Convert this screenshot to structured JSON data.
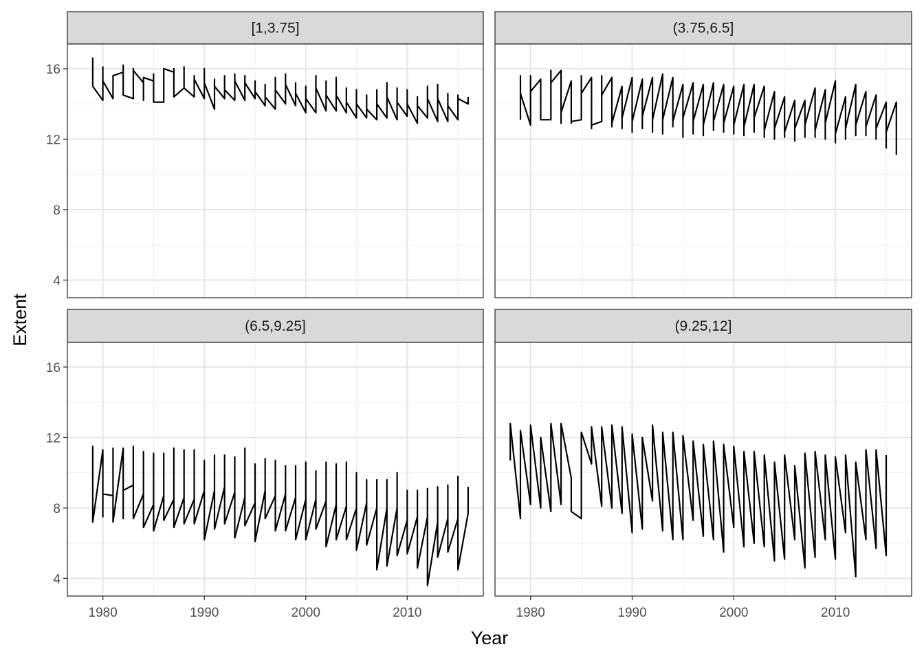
{
  "chart_data": {
    "type": "line",
    "xlabel": "Year",
    "ylabel": "Extent",
    "xlim": [
      1976.5,
      2017.5
    ],
    "ylim": [
      3.0,
      17.4
    ],
    "x_ticks": [
      1980,
      1990,
      2000,
      2010
    ],
    "x_tick_labels": [
      "1980",
      "1990",
      "2000",
      "2010"
    ],
    "y_ticks": [
      4,
      8,
      12,
      16
    ],
    "y_tick_labels": [
      "4",
      "8",
      "12",
      "16"
    ],
    "grid": true,
    "facets": [
      {
        "label": "[1,3.75]",
        "x": [
          1979,
          1979,
          1979,
          1980,
          1980,
          1980,
          1981,
          1981,
          1981,
          1982,
          1982,
          1982,
          1983,
          1983,
          1983,
          1984,
          1984,
          1984,
          1985,
          1985,
          1985,
          1986,
          1986,
          1986,
          1987,
          1987,
          1987,
          1988,
          1988,
          1988,
          1989,
          1989,
          1989,
          1990,
          1990,
          1990,
          1991,
          1991,
          1991,
          1992,
          1992,
          1992,
          1993,
          1993,
          1993,
          1994,
          1994,
          1994,
          1995,
          1995,
          1995,
          1996,
          1996,
          1996,
          1997,
          1997,
          1997,
          1998,
          1998,
          1998,
          1999,
          1999,
          1999,
          2000,
          2000,
          2000,
          2001,
          2001,
          2001,
          2002,
          2002,
          2002,
          2003,
          2003,
          2003,
          2004,
          2004,
          2004,
          2005,
          2005,
          2005,
          2006,
          2006,
          2006,
          2007,
          2007,
          2007,
          2008,
          2008,
          2008,
          2009,
          2009,
          2009,
          2010,
          2010,
          2010,
          2011,
          2011,
          2011,
          2012,
          2012,
          2012,
          2013,
          2013,
          2013,
          2014,
          2014,
          2014,
          2015,
          2015,
          2015,
          2016,
          2016
        ],
        "y": [
          15.0,
          16.6,
          15.0,
          14.2,
          16.1,
          15.3,
          14.3,
          15.6,
          15.6,
          15.8,
          16.2,
          14.5,
          14.3,
          16.0,
          15.9,
          15.2,
          14.2,
          15.5,
          15.3,
          15.7,
          14.1,
          14.1,
          16.0,
          16.0,
          15.8,
          16.0,
          14.4,
          14.9,
          16.1,
          14.9,
          14.4,
          15.6,
          15.4,
          14.3,
          16.0,
          15.2,
          13.7,
          15.4,
          15.0,
          14.3,
          15.6,
          14.8,
          14.2,
          15.7,
          15.3,
          14.2,
          15.6,
          15.2,
          14.3,
          15.3,
          14.7,
          13.9,
          15.1,
          14.4,
          13.7,
          15.5,
          14.8,
          14.0,
          15.7,
          15.1,
          13.9,
          15.2,
          14.6,
          13.5,
          15.0,
          14.3,
          13.5,
          15.6,
          14.9,
          13.6,
          15.3,
          14.5,
          13.6,
          15.5,
          14.5,
          13.5,
          14.9,
          14.1,
          13.2,
          14.8,
          14.0,
          13.2,
          14.5,
          13.7,
          13.1,
          14.8,
          14.0,
          13.2,
          15.2,
          14.4,
          13.1,
          14.9,
          14.1,
          13.3,
          14.8,
          14.0,
          12.9,
          14.4,
          13.9,
          13.2,
          15.0,
          14.3,
          13.0,
          15.1,
          14.3,
          13.0,
          14.6,
          13.9,
          13.1,
          14.5,
          14.3,
          14.0,
          14.4
        ]
      },
      {
        "label": "(3.75,6.5]",
        "x": [
          1979,
          1979,
          1979,
          1980,
          1980,
          1980,
          1981,
          1981,
          1981,
          1982,
          1982,
          1982,
          1983,
          1983,
          1983,
          1984,
          1984,
          1984,
          1985,
          1985,
          1985,
          1986,
          1986,
          1986,
          1987,
          1987,
          1987,
          1988,
          1988,
          1988,
          1989,
          1989,
          1989,
          1990,
          1990,
          1990,
          1991,
          1991,
          1991,
          1992,
          1992,
          1992,
          1993,
          1993,
          1993,
          1994,
          1994,
          1994,
          1995,
          1995,
          1995,
          1996,
          1996,
          1996,
          1997,
          1997,
          1997,
          1998,
          1998,
          1998,
          1999,
          1999,
          1999,
          2000,
          2000,
          2000,
          2001,
          2001,
          2001,
          2002,
          2002,
          2002,
          2003,
          2003,
          2003,
          2004,
          2004,
          2004,
          2005,
          2005,
          2005,
          2006,
          2006,
          2006,
          2007,
          2007,
          2007,
          2008,
          2008,
          2008,
          2009,
          2009,
          2009,
          2010,
          2010,
          2010,
          2011,
          2011,
          2011,
          2012,
          2012,
          2012,
          2013,
          2013,
          2013,
          2014,
          2014,
          2014,
          2015,
          2015,
          2015,
          2016,
          2016
        ],
        "y": [
          13.1,
          15.6,
          14.6,
          12.8,
          15.6,
          14.7,
          15.4,
          13.1,
          13.1,
          13.1,
          15.9,
          15.2,
          15.9,
          12.9,
          13.5,
          15.3,
          12.9,
          13.0,
          13.1,
          15.6,
          14.6,
          15.5,
          12.6,
          12.8,
          13.0,
          15.6,
          14.5,
          15.5,
          12.7,
          12.9,
          15.0,
          12.6,
          13.2,
          15.5,
          12.4,
          13.0,
          15.4,
          12.6,
          13.3,
          15.5,
          12.4,
          13.1,
          15.7,
          12.3,
          13.1,
          15.5,
          12.7,
          13.0,
          15.1,
          12.1,
          13.2,
          15.2,
          12.3,
          13.0,
          15.1,
          12.2,
          12.8,
          15.2,
          12.5,
          13.0,
          15.1,
          12.4,
          12.9,
          15.0,
          12.3,
          12.8,
          15.1,
          12.2,
          12.7,
          15.1,
          12.4,
          13.2,
          15.0,
          12.1,
          12.5,
          14.7,
          12.0,
          12.6,
          14.4,
          12.1,
          12.4,
          14.2,
          11.9,
          12.6,
          14.2,
          12.1,
          12.8,
          14.9,
          12.1,
          12.5,
          14.8,
          12.0,
          12.9,
          15.3,
          11.8,
          12.3,
          14.4,
          12.0,
          12.6,
          15.1,
          12.2,
          12.8,
          14.7,
          12.2,
          12.7,
          14.5,
          12.0,
          12.6,
          14.1,
          11.5,
          12.4,
          14.1,
          11.1
        ]
      },
      {
        "label": "(6.5,9.25]",
        "x": [
          1979,
          1979,
          1979,
          1980,
          1980,
          1980,
          1981,
          1981,
          1981,
          1982,
          1982,
          1982,
          1983,
          1983,
          1983,
          1984,
          1984,
          1984,
          1985,
          1985,
          1985,
          1986,
          1986,
          1986,
          1987,
          1987,
          1987,
          1988,
          1988,
          1988,
          1989,
          1989,
          1989,
          1990,
          1990,
          1990,
          1991,
          1991,
          1991,
          1992,
          1992,
          1992,
          1993,
          1993,
          1993,
          1994,
          1994,
          1994,
          1995,
          1995,
          1995,
          1996,
          1996,
          1996,
          1997,
          1997,
          1997,
          1998,
          1998,
          1998,
          1999,
          1999,
          1999,
          2000,
          2000,
          2000,
          2001,
          2001,
          2001,
          2002,
          2002,
          2002,
          2003,
          2003,
          2003,
          2004,
          2004,
          2004,
          2005,
          2005,
          2005,
          2006,
          2006,
          2006,
          2007,
          2007,
          2007,
          2008,
          2008,
          2008,
          2009,
          2009,
          2009,
          2010,
          2010,
          2010,
          2011,
          2011,
          2011,
          2012,
          2012,
          2012,
          2013,
          2013,
          2013,
          2014,
          2014,
          2014,
          2015,
          2015,
          2015,
          2016,
          2016
        ],
        "y": [
          9.0,
          11.5,
          7.2,
          11.3,
          7.5,
          8.8,
          8.7,
          11.4,
          7.2,
          11.4,
          7.4,
          9.0,
          9.3,
          11.5,
          7.4,
          8.8,
          11.2,
          6.9,
          8.2,
          11.1,
          6.7,
          8.7,
          11.1,
          7.3,
          8.5,
          11.4,
          6.9,
          8.6,
          11.3,
          7.1,
          8.5,
          11.3,
          7.1,
          9.0,
          10.7,
          6.2,
          9.0,
          11.0,
          6.8,
          9.2,
          11.0,
          7.1,
          8.9,
          10.9,
          6.3,
          8.6,
          11.4,
          7.0,
          8.3,
          10.5,
          6.1,
          9.0,
          10.8,
          7.4,
          8.7,
          10.7,
          6.7,
          8.8,
          10.4,
          6.7,
          8.6,
          10.4,
          6.2,
          8.5,
          10.6,
          6.2,
          8.5,
          10.1,
          6.8,
          8.4,
          10.6,
          5.8,
          8.2,
          10.5,
          6.2,
          8.1,
          10.6,
          6.2,
          8.0,
          10.0,
          5.6,
          8.3,
          9.6,
          5.9,
          8.0,
          9.6,
          4.5,
          8.0,
          9.6,
          4.7,
          8.0,
          10.0,
          5.3,
          7.3,
          9.0,
          5.4,
          7.5,
          9.0,
          4.6,
          7.5,
          9.1,
          3.6,
          7.2,
          9.2,
          5.2,
          7.4,
          9.3,
          5.5,
          7.4,
          9.8,
          4.5,
          7.7,
          9.2
        ]
      },
      {
        "label": "(9.25,12]",
        "x": [
          1978,
          1978,
          1979,
          1979,
          1980,
          1980,
          1981,
          1981,
          1982,
          1982,
          1983,
          1983,
          1984,
          1984,
          1985,
          1985,
          1986,
          1986,
          1987,
          1987,
          1988,
          1988,
          1989,
          1989,
          1990,
          1990,
          1991,
          1991,
          1992,
          1992,
          1993,
          1993,
          1994,
          1994,
          1995,
          1995,
          1996,
          1996,
          1997,
          1997,
          1998,
          1998,
          1999,
          1999,
          2000,
          2000,
          2001,
          2001,
          2002,
          2002,
          2003,
          2003,
          2004,
          2004,
          2005,
          2005,
          2006,
          2006,
          2007,
          2007,
          2008,
          2008,
          2009,
          2009,
          2010,
          2010,
          2011,
          2011,
          2012,
          2012,
          2013,
          2013,
          2014,
          2014,
          2015,
          2015
        ],
        "y": [
          10.7,
          12.8,
          7.4,
          12.4,
          8.2,
          12.7,
          8.0,
          12.0,
          7.8,
          12.8,
          8.2,
          12.8,
          9.7,
          7.8,
          7.4,
          12.3,
          10.5,
          12.6,
          8.1,
          12.6,
          8.0,
          12.7,
          7.7,
          12.6,
          6.6,
          12.2,
          6.8,
          12.0,
          8.4,
          12.7,
          6.7,
          12.3,
          6.2,
          12.3,
          6.2,
          12.1,
          7.3,
          11.8,
          6.4,
          11.6,
          6.2,
          11.8,
          5.5,
          11.6,
          6.9,
          11.5,
          5.8,
          11.2,
          6.0,
          11.2,
          5.8,
          11.0,
          5.0,
          10.6,
          5.1,
          11.0,
          6.2,
          10.4,
          4.6,
          11.1,
          5.2,
          11.2,
          6.2,
          11.0,
          5.1,
          10.9,
          6.6,
          11.0,
          4.1,
          10.6,
          6.2,
          11.3,
          5.7,
          11.3,
          5.3,
          11.0
        ]
      }
    ]
  }
}
